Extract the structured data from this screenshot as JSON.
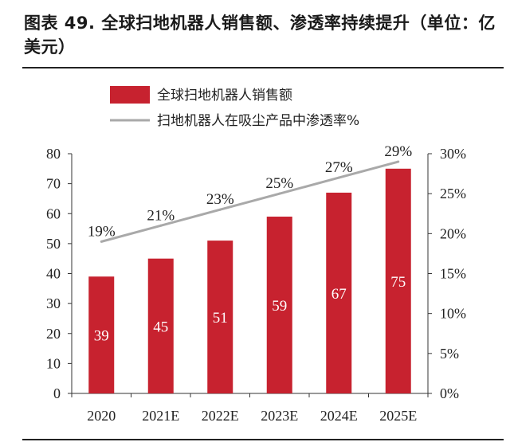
{
  "title": "图表 49. 全球扫地机器人销售额、渗透率持续提升（单位：亿美元）",
  "chart_data": {
    "type": "bar",
    "categories": [
      "2020",
      "2021E",
      "2022E",
      "2023E",
      "2024E",
      "2025E"
    ],
    "series": [
      {
        "name": "全球扫地机器人销售额",
        "type": "bar",
        "axis": "left",
        "color": "#c7222f",
        "values": [
          39,
          45,
          51,
          59,
          67,
          75
        ],
        "labels": [
          "39",
          "45",
          "51",
          "59",
          "67",
          "75"
        ]
      },
      {
        "name": "扫地机器人在吸尘产品中渗透率%",
        "type": "line",
        "axis": "right",
        "color": "#a9a9a9",
        "values": [
          19,
          21,
          23,
          25,
          27,
          29
        ],
        "labels": [
          "19%",
          "21%",
          "23%",
          "25%",
          "27%",
          "29%"
        ]
      }
    ],
    "y_left": {
      "min": 0,
      "max": 80,
      "step": 10,
      "ticks": [
        "0",
        "10",
        "20",
        "30",
        "40",
        "50",
        "60",
        "70",
        "80"
      ]
    },
    "y_right": {
      "min": 0,
      "max": 30,
      "step": 5,
      "ticks": [
        "0%",
        "5%",
        "10%",
        "15%",
        "20%",
        "25%",
        "30%"
      ]
    },
    "legend_position": "top-left",
    "grid": false
  }
}
